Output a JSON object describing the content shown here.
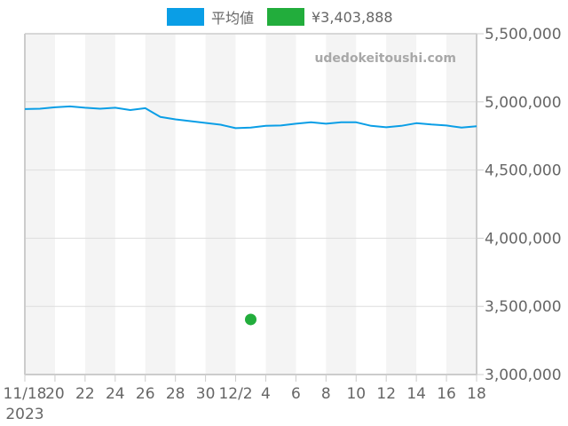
{
  "legend": [
    {
      "label": "平均値",
      "color": "#0a9ee6"
    },
    {
      "label": "¥3,403,888",
      "color": "#22ad3c"
    }
  ],
  "watermark": "udedokeitoushi.com",
  "chart_data": {
    "type": "line",
    "title": "",
    "xlabel": "",
    "ylabel": "",
    "x_start": "2023-11-18",
    "x_end": "2023-12-18",
    "x_tick_labels": [
      "11/18\n2023",
      "20",
      "22",
      "24",
      "26",
      "28",
      "30",
      "12/2",
      "4",
      "6",
      "8",
      "10",
      "12",
      "14",
      "16",
      "18"
    ],
    "y_tick_labels": [
      "3,000,000",
      "3,500,000",
      "4,000,000",
      "4,500,000",
      "5,000,000",
      "5,500,000"
    ],
    "ylim": [
      3000000,
      5500000
    ],
    "grid": true,
    "legend_position": "top",
    "series": [
      {
        "name": "平均値",
        "type": "line",
        "color": "#0a9ee6",
        "x": [
          "11/18",
          "11/19",
          "11/20",
          "11/21",
          "11/22",
          "11/23",
          "11/24",
          "11/25",
          "11/26",
          "11/27",
          "11/28",
          "11/29",
          "11/30",
          "12/1",
          "12/2",
          "12/3",
          "12/4",
          "12/5",
          "12/6",
          "12/7",
          "12/8",
          "12/9",
          "12/10",
          "12/11",
          "12/12",
          "12/13",
          "12/14",
          "12/15",
          "12/16",
          "12/17",
          "12/18"
        ],
        "values": [
          4947000,
          4950000,
          4960000,
          4967000,
          4957000,
          4950000,
          4957000,
          4940000,
          4954000,
          4889000,
          4872000,
          4859000,
          4846000,
          4833000,
          4807000,
          4811000,
          4824000,
          4827000,
          4840000,
          4850000,
          4840000,
          4850000,
          4850000,
          4824000,
          4814000,
          4824000,
          4844000,
          4834000,
          4827000,
          4811000,
          4821000
        ]
      },
      {
        "name": "¥3,403,888",
        "type": "scatter",
        "color": "#22ad3c",
        "x": [
          "12/3"
        ],
        "values": [
          3403888
        ]
      }
    ]
  }
}
